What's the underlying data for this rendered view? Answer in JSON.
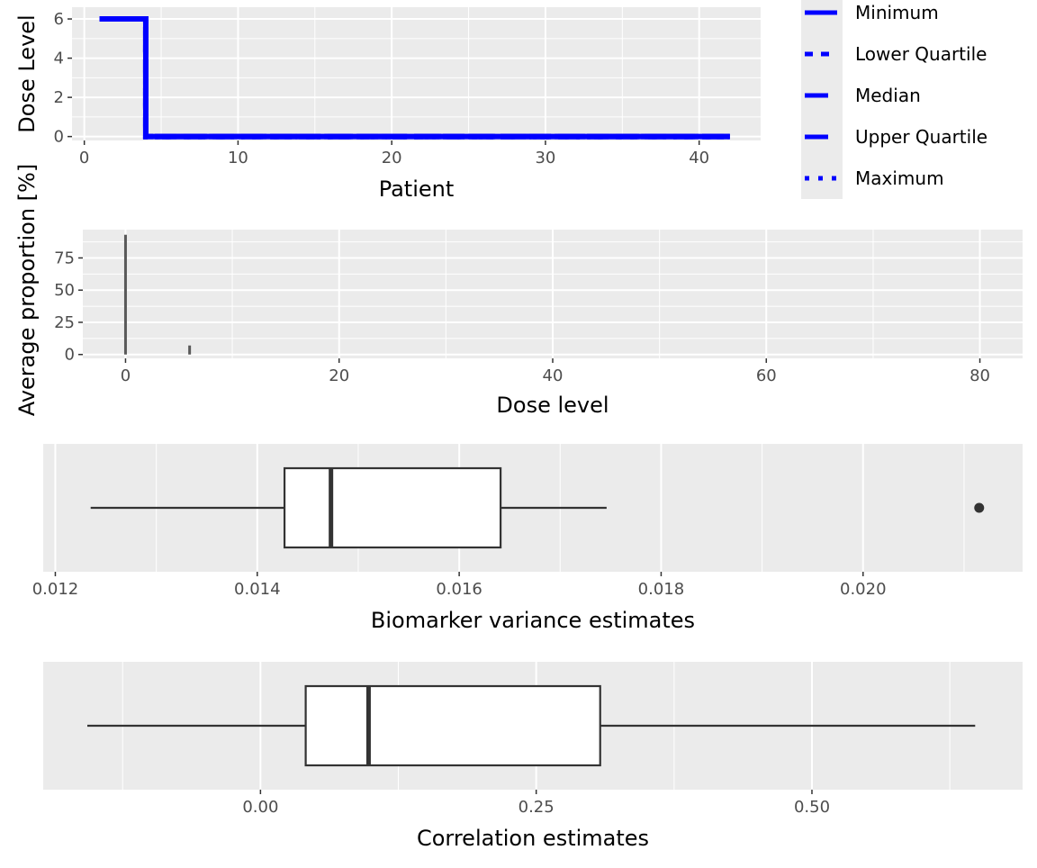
{
  "chart_data": [
    {
      "type": "line",
      "step": "hv",
      "xlabel": "Patient",
      "ylabel": "Dose Level",
      "xlim": [
        -0.8,
        44
      ],
      "ylim": [
        -0.2,
        6.6
      ],
      "xticks": [
        0,
        10,
        20,
        30,
        40
      ],
      "yticks": [
        0,
        2,
        4,
        6
      ],
      "grid": true,
      "legend_position": "right",
      "x": [
        1,
        2,
        3,
        4,
        5,
        6,
        7,
        8,
        9,
        10,
        11,
        12,
        13,
        14,
        15,
        16,
        17,
        18,
        19,
        20,
        21,
        22,
        23,
        24,
        25,
        26,
        27,
        28,
        29,
        30,
        31,
        32,
        33,
        34,
        35,
        36,
        37,
        38,
        39,
        40,
        41,
        42
      ],
      "series": [
        {
          "name": "Minimum",
          "linetype": "solid",
          "values": [
            6,
            6,
            6,
            0,
            0,
            0,
            0,
            0,
            0,
            0,
            0,
            0,
            0,
            0,
            0,
            0,
            0,
            0,
            0,
            0,
            0,
            0,
            0,
            0,
            0,
            0,
            0,
            0,
            0,
            0,
            0,
            0,
            0,
            0,
            0,
            0,
            0,
            0,
            0,
            0,
            0,
            0
          ]
        },
        {
          "name": "Lower Quartile",
          "linetype": "dashed",
          "values": [
            6,
            6,
            6,
            0,
            0,
            0,
            0,
            0,
            0,
            0,
            0,
            0,
            0,
            0,
            0,
            0,
            0,
            0,
            0,
            0,
            0,
            0,
            0,
            0,
            0,
            0,
            0,
            0,
            0,
            0,
            0,
            0,
            0,
            0,
            0,
            0,
            0,
            0,
            0,
            0,
            0,
            0
          ]
        },
        {
          "name": "Median",
          "linetype": "longdash",
          "values": [
            6,
            6,
            6,
            0,
            0,
            0,
            0,
            0,
            0,
            0,
            0,
            0,
            0,
            0,
            0,
            0,
            0,
            0,
            0,
            0,
            0,
            0,
            0,
            0,
            0,
            0,
            0,
            0,
            0,
            0,
            0,
            0,
            0,
            0,
            0,
            0,
            0,
            0,
            0,
            0,
            0,
            0
          ]
        },
        {
          "name": "Upper Quartile",
          "linetype": "longdash",
          "values": [
            6,
            6,
            6,
            0,
            0,
            0,
            0,
            0,
            0,
            0,
            0,
            0,
            0,
            0,
            0,
            0,
            0,
            0,
            0,
            0,
            0,
            0,
            0,
            0,
            0,
            0,
            0,
            0,
            0,
            0,
            0,
            0,
            0,
            0,
            0,
            0,
            0,
            0,
            0,
            0,
            0,
            0
          ]
        },
        {
          "name": "Maximum",
          "linetype": "dotted",
          "values": [
            6,
            6,
            6,
            0,
            0,
            0,
            0,
            0,
            0,
            0,
            0,
            0,
            0,
            0,
            0,
            0,
            0,
            0,
            0,
            0,
            0,
            0,
            0,
            0,
            0,
            0,
            0,
            0,
            0,
            0,
            0,
            0,
            0,
            0,
            0,
            0,
            0,
            0,
            0,
            0,
            0,
            0
          ]
        }
      ],
      "color": "#0000ff"
    },
    {
      "type": "bar",
      "xlabel": "Dose level",
      "ylabel": "Average proportion [%]",
      "xlim": [
        -4,
        84
      ],
      "ylim": [
        -3,
        97
      ],
      "xticks": [
        0,
        20,
        40,
        60,
        80
      ],
      "yticks": [
        0,
        25,
        50,
        75
      ],
      "grid": true,
      "x": [
        0,
        6
      ],
      "values": [
        93,
        7
      ],
      "color": "#595959"
    },
    {
      "type": "box",
      "xlabel": "Biomarker variance estimates",
      "xlim": [
        0.01188,
        0.02158
      ],
      "xticks": [
        0.012,
        0.014,
        0.016,
        0.018,
        0.02
      ],
      "xticklabels": [
        "0.012",
        "0.014",
        "0.016",
        "0.018",
        "0.020"
      ],
      "grid": true,
      "whisker_low": 0.01235,
      "q1": 0.01427,
      "median": 0.01473,
      "q3": 0.01641,
      "whisker_high": 0.01746,
      "outliers": [
        0.02115
      ]
    },
    {
      "type": "box",
      "xlabel": "Correlation estimates",
      "xlim": [
        -0.197,
        0.691
      ],
      "xticks": [
        0.0,
        0.25,
        0.5
      ],
      "xticklabels": [
        "0.00",
        "0.25",
        "0.50"
      ],
      "grid": true,
      "whisker_low": -0.157,
      "q1": 0.041,
      "median": 0.098,
      "q3": 0.308,
      "whisker_high": 0.648,
      "outliers": []
    }
  ]
}
